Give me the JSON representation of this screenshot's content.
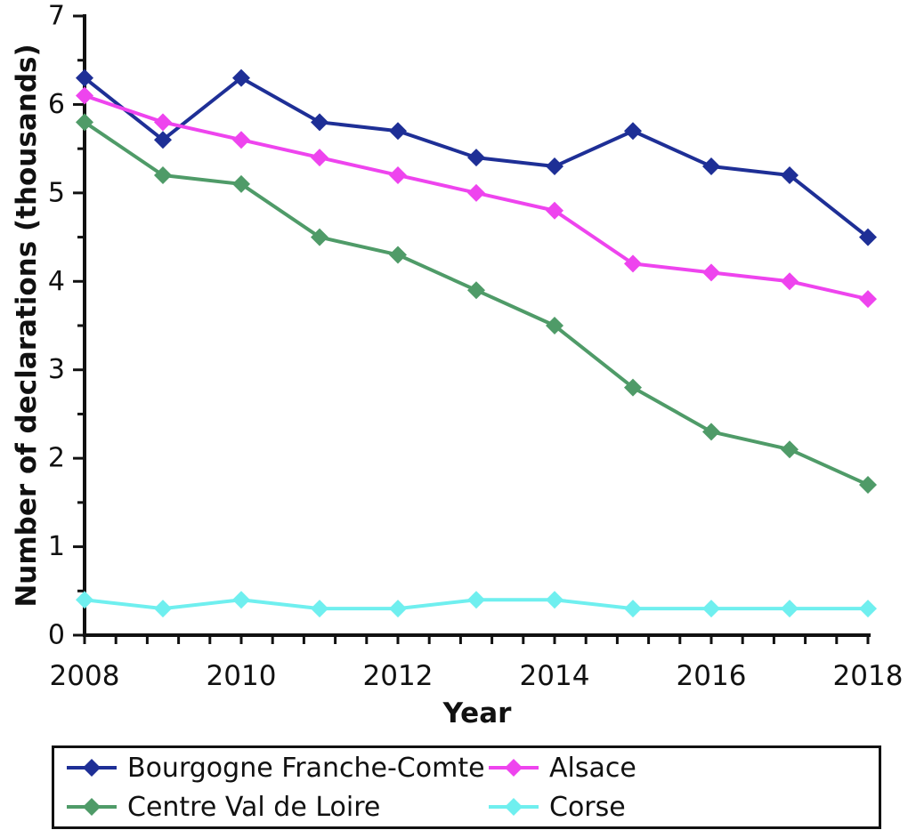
{
  "chart_data": {
    "type": "line",
    "title": "",
    "xlabel": "Year",
    "ylabel": "Number of declarations (thousands)",
    "x": [
      2008,
      2009,
      2010,
      2011,
      2012,
      2013,
      2014,
      2015,
      2016,
      2017,
      2018
    ],
    "x_tick_labels": [
      "2008",
      "2010",
      "2012",
      "2014",
      "2016",
      "2018"
    ],
    "x_tick_values": [
      2008,
      2010,
      2012,
      2014,
      2016,
      2018
    ],
    "y_tick_labels": [
      "0",
      "1",
      "2",
      "3",
      "4",
      "5",
      "6",
      "7"
    ],
    "y_tick_values": [
      0,
      1,
      2,
      3,
      4,
      5,
      6,
      7
    ],
    "xlim": [
      2008,
      2018
    ],
    "ylim": [
      0,
      7
    ],
    "x_minor_step": 0.4,
    "y_minor_step": 0.5,
    "grid": false,
    "legend_position": "bottom",
    "marker_shape": "diamond",
    "axis_color": "#111111",
    "series": [
      {
        "name": "Bourgogne Franche-Comte",
        "color": "#1E2F96",
        "values": [
          6.3,
          5.6,
          6.3,
          5.8,
          5.7,
          5.4,
          5.3,
          5.7,
          5.3,
          5.2,
          4.5
        ]
      },
      {
        "name": "Alsace",
        "color": "#EE44EE",
        "values": [
          6.1,
          5.8,
          5.6,
          5.4,
          5.2,
          5.0,
          4.8,
          4.2,
          4.1,
          4.0,
          3.8
        ]
      },
      {
        "name": "Centre Val de Loire",
        "color": "#4F9B68",
        "values": [
          5.8,
          5.2,
          5.1,
          4.5,
          4.3,
          3.9,
          3.5,
          2.8,
          2.3,
          2.1,
          1.7
        ]
      },
      {
        "name": "Corse",
        "color": "#6FEFEF",
        "values": [
          0.4,
          0.3,
          0.4,
          0.3,
          0.3,
          0.4,
          0.4,
          0.3,
          0.3,
          0.3,
          0.3
        ]
      }
    ]
  }
}
